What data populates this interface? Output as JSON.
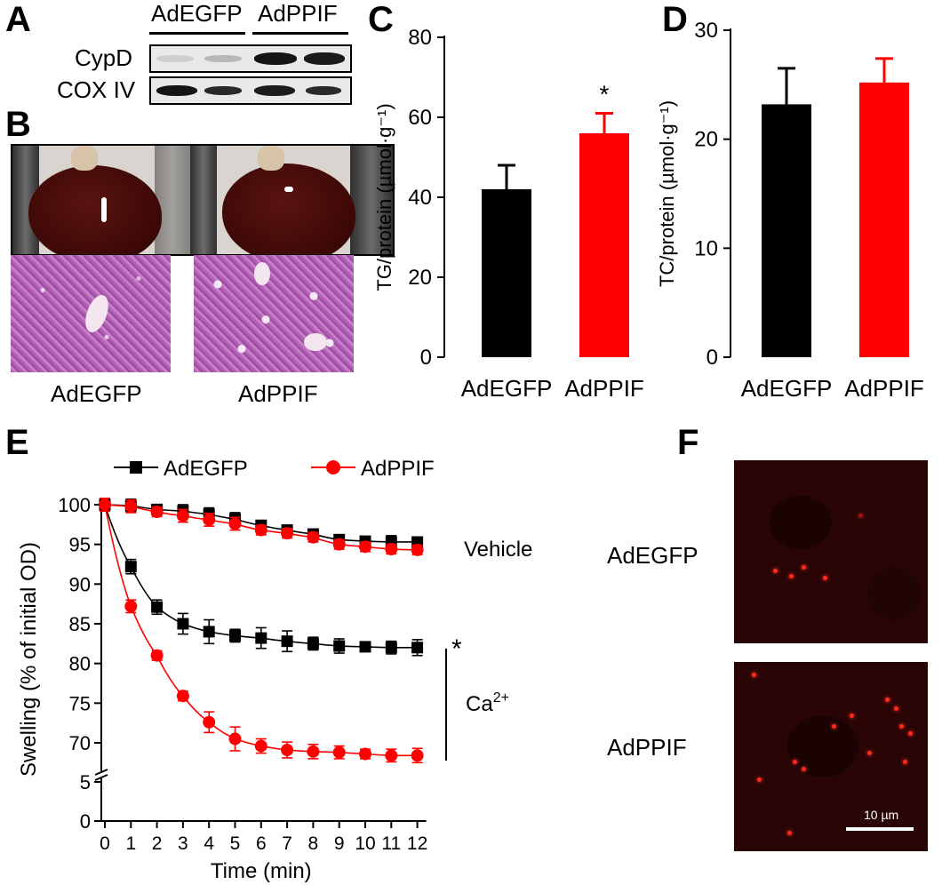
{
  "panels": {
    "a": "A",
    "b": "B",
    "c": "C",
    "d": "D",
    "e": "E",
    "f": "F"
  },
  "western": {
    "group1": "AdEGFP",
    "group2": "AdPPIF",
    "row1": "CypD",
    "row2": "COX IV"
  },
  "histology": {
    "label1": "AdEGFP",
    "label2": "AdPPIF"
  },
  "fluorescence": {
    "label1": "AdEGFP",
    "label2": "AdPPIF",
    "scale_bar": "10 µm"
  },
  "colors": {
    "AdEGFP": "#000000",
    "AdPPIF": "#ff0000"
  },
  "chart_data": [
    {
      "id": "C",
      "type": "bar",
      "categories": [
        "AdEGFP",
        "AdPPIF"
      ],
      "values": [
        42,
        56
      ],
      "errors": [
        6,
        5
      ],
      "colors": [
        "#000000",
        "#ff0000"
      ],
      "ylabel": "TG/protein (µmol·g⁻¹)",
      "ylim": [
        0,
        80
      ],
      "yticks": [
        0,
        20,
        40,
        60,
        80
      ],
      "annotation": "*"
    },
    {
      "id": "D",
      "type": "bar",
      "categories": [
        "AdEGFP",
        "AdPPIF"
      ],
      "values": [
        23.2,
        25.2
      ],
      "errors": [
        3.3,
        2.2
      ],
      "colors": [
        "#000000",
        "#ff0000"
      ],
      "ylabel": "TC/protein (µmol·g⁻¹)",
      "ylim": [
        0,
        30
      ],
      "yticks": [
        0,
        10,
        20,
        30
      ]
    },
    {
      "id": "E",
      "type": "line",
      "xlabel": "Time (min)",
      "ylabel": "Swelling (% of initial OD)",
      "x": [
        0,
        1,
        2,
        3,
        4,
        5,
        6,
        7,
        8,
        9,
        10,
        11,
        12
      ],
      "xticks": [
        "0",
        "1",
        "2",
        "3",
        "4",
        "5",
        "6",
        "7",
        "8",
        "9",
        "10",
        "11",
        "12"
      ],
      "yticks": [
        "0",
        "5",
        "70",
        "75",
        "80",
        "85",
        "90",
        "95",
        "100"
      ],
      "ylim_upper": [
        68,
        100
      ],
      "legend": [
        "AdEGFP",
        "AdPPIF"
      ],
      "series": [
        {
          "name": "AdEGFP",
          "group": "Vehicle",
          "marker": "square",
          "color": "#000000",
          "values": [
            100,
            99.9,
            99.4,
            99.2,
            98.8,
            98.2,
            97.4,
            96.8,
            96.3,
            95.6,
            95.4,
            95.3,
            95.3
          ],
          "errors": [
            0.8,
            0.8,
            0.6,
            0.8,
            0.8,
            0.8,
            0.6,
            0.6,
            0.6,
            0.6,
            0.6,
            0.8,
            0.6
          ]
        },
        {
          "name": "AdPPIF",
          "group": "Vehicle",
          "marker": "circle",
          "color": "#ff0000",
          "values": [
            100,
            99.8,
            99.1,
            98.6,
            98.1,
            97.6,
            96.8,
            96.4,
            95.9,
            95.0,
            94.7,
            94.4,
            94.3
          ],
          "errors": [
            0.8,
            0.8,
            0.6,
            0.8,
            0.8,
            0.8,
            0.6,
            0.6,
            0.6,
            0.6,
            0.6,
            0.6,
            0.6
          ]
        },
        {
          "name": "AdEGFP",
          "group": "Ca2+",
          "marker": "square",
          "color": "#000000",
          "values": [
            100,
            92.2,
            87.1,
            85.0,
            84.0,
            83.5,
            83.2,
            82.8,
            82.5,
            82.2,
            82.1,
            82.0,
            82.0
          ],
          "errors": [
            0.8,
            0.9,
            0.9,
            1.3,
            1.5,
            0.8,
            1.3,
            1.3,
            0.8,
            0.9,
            0.6,
            0.8,
            1.0
          ]
        },
        {
          "name": "AdPPIF",
          "group": "Ca2+",
          "marker": "circle",
          "color": "#ff0000",
          "values": [
            100,
            87.2,
            81.0,
            75.9,
            72.6,
            70.5,
            69.6,
            69.1,
            68.9,
            68.8,
            68.6,
            68.4,
            68.4
          ],
          "errors": [
            0.8,
            0.8,
            0.6,
            0.6,
            1.3,
            1.5,
            0.9,
            1.0,
            0.9,
            0.8,
            0.6,
            0.8,
            0.9
          ]
        }
      ],
      "annotations": [
        "Vehicle",
        "*"
      ],
      "ca_label": "Ca",
      "ca_sup": "2+"
    }
  ]
}
